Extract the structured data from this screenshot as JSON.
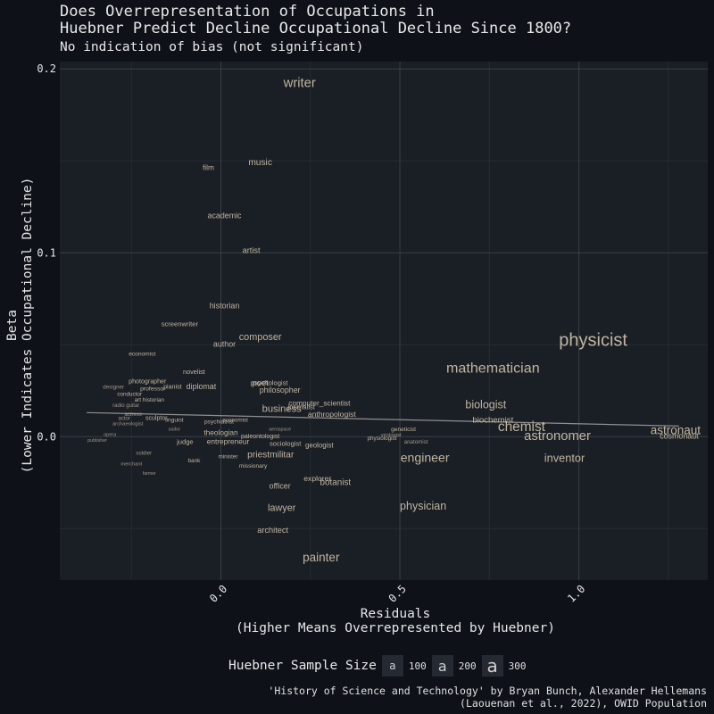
{
  "chart_data": {
    "type": "scatter",
    "title_lines": [
      "Does Overrepresentation of Occupations in",
      "Huebner Predict Decline Occupational Decline Since 1800?"
    ],
    "subtitle": "No indication of bias (not significant)",
    "xlabel_lines": [
      "Residuals",
      "(Higher Means Overrepresented by Huebner)"
    ],
    "ylabel_lines": [
      "Beta",
      "(Lower Indicates Occupational Decline)"
    ],
    "xlim": [
      -0.45,
      1.36
    ],
    "ylim": [
      -0.078,
      0.204
    ],
    "x_ticks": [
      0.0,
      0.5,
      1.0
    ],
    "x_tick_labels": [
      "0.0",
      "0.5",
      "1.0"
    ],
    "y_ticks": [
      0.0,
      0.1,
      0.2
    ],
    "y_tick_labels": [
      "0.0",
      "0.1",
      "0.2"
    ],
    "grid": true,
    "trend_line": {
      "x": [
        -0.375,
        1.28
      ],
      "y": [
        0.0131,
        0.0058
      ]
    },
    "points": [
      {
        "label": "writer",
        "x": 0.22,
        "y": 0.192,
        "n": 210
      },
      {
        "label": "film",
        "x": -0.035,
        "y": 0.146,
        "n": 110
      },
      {
        "label": "music",
        "x": 0.11,
        "y": 0.149,
        "n": 140
      },
      {
        "label": "academic",
        "x": 0.01,
        "y": 0.12,
        "n": 120
      },
      {
        "label": "artist",
        "x": 0.085,
        "y": 0.101,
        "n": 125
      },
      {
        "label": "historian",
        "x": 0.01,
        "y": 0.071,
        "n": 120
      },
      {
        "label": "screenwriter",
        "x": -0.115,
        "y": 0.061,
        "n": 100
      },
      {
        "label": "composer",
        "x": 0.11,
        "y": 0.054,
        "n": 150
      },
      {
        "label": "author",
        "x": 0.01,
        "y": 0.05,
        "n": 120
      },
      {
        "label": "economist",
        "x": -0.22,
        "y": 0.045,
        "n": 85
      },
      {
        "label": "novelist",
        "x": -0.075,
        "y": 0.035,
        "n": 95
      },
      {
        "label": "photographer",
        "x": -0.205,
        "y": 0.03,
        "n": 92
      },
      {
        "label": "designer",
        "x": -0.3,
        "y": 0.027,
        "n": 78
      },
      {
        "label": "professor",
        "x": -0.19,
        "y": 0.026,
        "n": 88
      },
      {
        "label": "pianist",
        "x": -0.135,
        "y": 0.027,
        "n": 92
      },
      {
        "label": "diplomat",
        "x": -0.055,
        "y": 0.027,
        "n": 120
      },
      {
        "label": "poet",
        "x": 0.11,
        "y": 0.029,
        "n": 125
      },
      {
        "label": "psychologist",
        "x": 0.135,
        "y": 0.029,
        "n": 100
      },
      {
        "label": "philosopher",
        "x": 0.165,
        "y": 0.025,
        "n": 120
      },
      {
        "label": "conductor",
        "x": -0.255,
        "y": 0.023,
        "n": 80
      },
      {
        "label": "art historian",
        "x": -0.2,
        "y": 0.02,
        "n": 82
      },
      {
        "label": "radio guitar",
        "x": -0.265,
        "y": 0.017,
        "n": 75
      },
      {
        "label": "computer_scientist",
        "x": 0.275,
        "y": 0.018,
        "n": 110
      },
      {
        "label": "business",
        "x": 0.17,
        "y": 0.015,
        "n": 155
      },
      {
        "label": "journalist",
        "x": 0.225,
        "y": 0.016,
        "n": 100
      },
      {
        "label": "anthropologist",
        "x": 0.31,
        "y": 0.012,
        "n": 115
      },
      {
        "label": "biologist",
        "x": 0.74,
        "y": 0.017,
        "n": 175
      },
      {
        "label": "biochemist",
        "x": 0.76,
        "y": 0.009,
        "n": 130
      },
      {
        "label": "actress",
        "x": -0.245,
        "y": 0.012,
        "n": 75
      },
      {
        "label": "actor",
        "x": -0.27,
        "y": 0.01,
        "n": 75
      },
      {
        "label": "sculptor",
        "x": -0.18,
        "y": 0.01,
        "n": 90
      },
      {
        "label": "linguist",
        "x": -0.13,
        "y": 0.009,
        "n": 85
      },
      {
        "label": "psychiatrist",
        "x": -0.005,
        "y": 0.008,
        "n": 85
      },
      {
        "label": "economist",
        "x": 0.04,
        "y": 0.009,
        "n": 80
      },
      {
        "label": "archaeologist",
        "x": -0.26,
        "y": 0.007,
        "n": 72
      },
      {
        "label": "chemist",
        "x": 0.84,
        "y": 0.005,
        "n": 220
      },
      {
        "label": "physicist",
        "x": 1.04,
        "y": 0.052,
        "n": 290
      },
      {
        "label": "mathematician",
        "x": 0.76,
        "y": 0.037,
        "n": 230
      },
      {
        "label": "astronomer",
        "x": 0.94,
        "y": 0.0,
        "n": 210
      },
      {
        "label": "astronaut",
        "x": 1.27,
        "y": 0.003,
        "n": 190
      },
      {
        "label": "cosmonaut",
        "x": 1.28,
        "y": 0.0,
        "n": 120
      },
      {
        "label": "inventor",
        "x": 0.96,
        "y": -0.012,
        "n": 180
      },
      {
        "label": "engineer",
        "x": 0.57,
        "y": -0.012,
        "n": 200
      },
      {
        "label": "geneticist",
        "x": 0.51,
        "y": 0.004,
        "n": 85
      },
      {
        "label": "virologist",
        "x": 0.475,
        "y": 0.001,
        "n": 72
      },
      {
        "label": "physiologist",
        "x": 0.45,
        "y": -0.001,
        "n": 80
      },
      {
        "label": "anatomist",
        "x": 0.545,
        "y": -0.003,
        "n": 78
      },
      {
        "label": "geologist",
        "x": 0.275,
        "y": -0.005,
        "n": 105
      },
      {
        "label": "aerospace",
        "x": 0.165,
        "y": 0.004,
        "n": 65
      },
      {
        "label": "paleontologist",
        "x": 0.11,
        "y": 0.0,
        "n": 90
      },
      {
        "label": "sociologist",
        "x": 0.18,
        "y": -0.004,
        "n": 100
      },
      {
        "label": "theologian",
        "x": 0.0,
        "y": 0.002,
        "n": 110
      },
      {
        "label": "entrepreneur",
        "x": 0.02,
        "y": -0.003,
        "n": 110
      },
      {
        "label": "judge",
        "x": -0.1,
        "y": -0.003,
        "n": 100
      },
      {
        "label": "priest",
        "x": 0.105,
        "y": -0.01,
        "n": 140
      },
      {
        "label": "militar",
        "x": 0.17,
        "y": -0.01,
        "n": 140
      },
      {
        "label": "missionary",
        "x": 0.09,
        "y": -0.016,
        "n": 85
      },
      {
        "label": "minister",
        "x": 0.02,
        "y": -0.011,
        "n": 80
      },
      {
        "label": "bank",
        "x": -0.075,
        "y": -0.013,
        "n": 82
      },
      {
        "label": "soldier",
        "x": -0.215,
        "y": -0.009,
        "n": 75
      },
      {
        "label": "sailor",
        "x": -0.13,
        "y": 0.004,
        "n": 70
      },
      {
        "label": "opera",
        "x": -0.31,
        "y": 0.001,
        "n": 68
      },
      {
        "label": "publisher",
        "x": -0.345,
        "y": -0.002,
        "n": 66
      },
      {
        "label": "merchant",
        "x": -0.25,
        "y": -0.015,
        "n": 70
      },
      {
        "label": "farmer",
        "x": -0.2,
        "y": -0.02,
        "n": 62
      },
      {
        "label": "officer",
        "x": 0.165,
        "y": -0.027,
        "n": 120
      },
      {
        "label": "explorer",
        "x": 0.27,
        "y": -0.023,
        "n": 115
      },
      {
        "label": "botanist",
        "x": 0.32,
        "y": -0.025,
        "n": 135
      },
      {
        "label": "lawyer",
        "x": 0.17,
        "y": -0.039,
        "n": 150
      },
      {
        "label": "physician",
        "x": 0.565,
        "y": -0.038,
        "n": 175
      },
      {
        "label": "architect",
        "x": 0.145,
        "y": -0.051,
        "n": 125
      },
      {
        "label": "painter",
        "x": 0.28,
        "y": -0.066,
        "n": 190
      }
    ]
  },
  "legend": {
    "title": "Huebner Sample Size",
    "key_glyph": "a",
    "entries": [
      {
        "label": "100",
        "n": 100
      },
      {
        "label": "200",
        "n": 200
      },
      {
        "label": "300",
        "n": 300
      }
    ]
  },
  "caption_lines": [
    "'History of Science and Technology' by Bryan Bunch, Alexander Hellemans",
    "(Laouenan et al., 2022), OWID Population"
  ],
  "colors": {
    "background": "#0e1218",
    "panel": "#1a1e25",
    "grid": "#3a3f47",
    "point_text": "#c9bfa6",
    "trend": "#8f8f8f",
    "axis_text": "#e6e6e6"
  }
}
